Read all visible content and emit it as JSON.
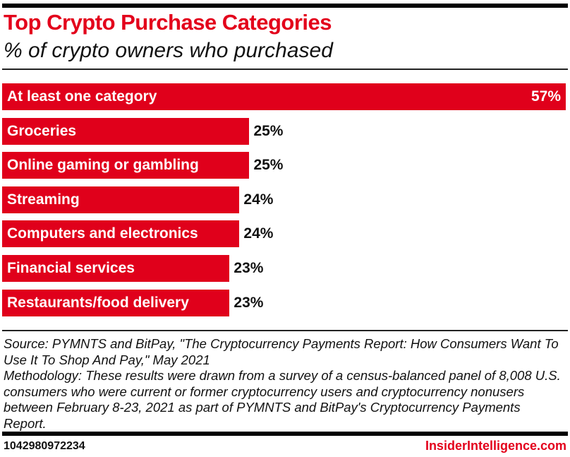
{
  "chart_data": {
    "type": "bar",
    "orientation": "horizontal",
    "title": "Top Crypto Purchase Categories",
    "subtitle": "% of crypto owners who purchased",
    "categories": [
      "At least one category",
      "Groceries",
      "Online gaming or gambling",
      "Streaming",
      "Computers and electronics",
      "Financial services",
      "Restaurants/food delivery"
    ],
    "values": [
      57,
      25,
      25,
      24,
      24,
      23,
      23
    ],
    "value_labels": [
      "57%",
      "25%",
      "25%",
      "24%",
      "24%",
      "23%",
      "23%"
    ],
    "xlim": [
      0,
      57
    ],
    "grid": false,
    "bar_color": "#e0001b"
  },
  "footer": {
    "source": "Source: PYMNTS and BitPay, \"The Cryptocurrency Payments Report: How Consumers Want To Use It To Shop And Pay,\" May 2021",
    "methodology": "Methodology: These results were drawn from a survey of a census-balanced panel of 8,008 U.S. consumers who were current or former cryptocurrency users and cryptocurrency nonusers between February 8-23, 2021 as part of PYMNTS and BitPay's Cryptocurrency Payments Report.",
    "chart_id": "1042980972234",
    "brand": "InsiderIntelligence.com"
  }
}
